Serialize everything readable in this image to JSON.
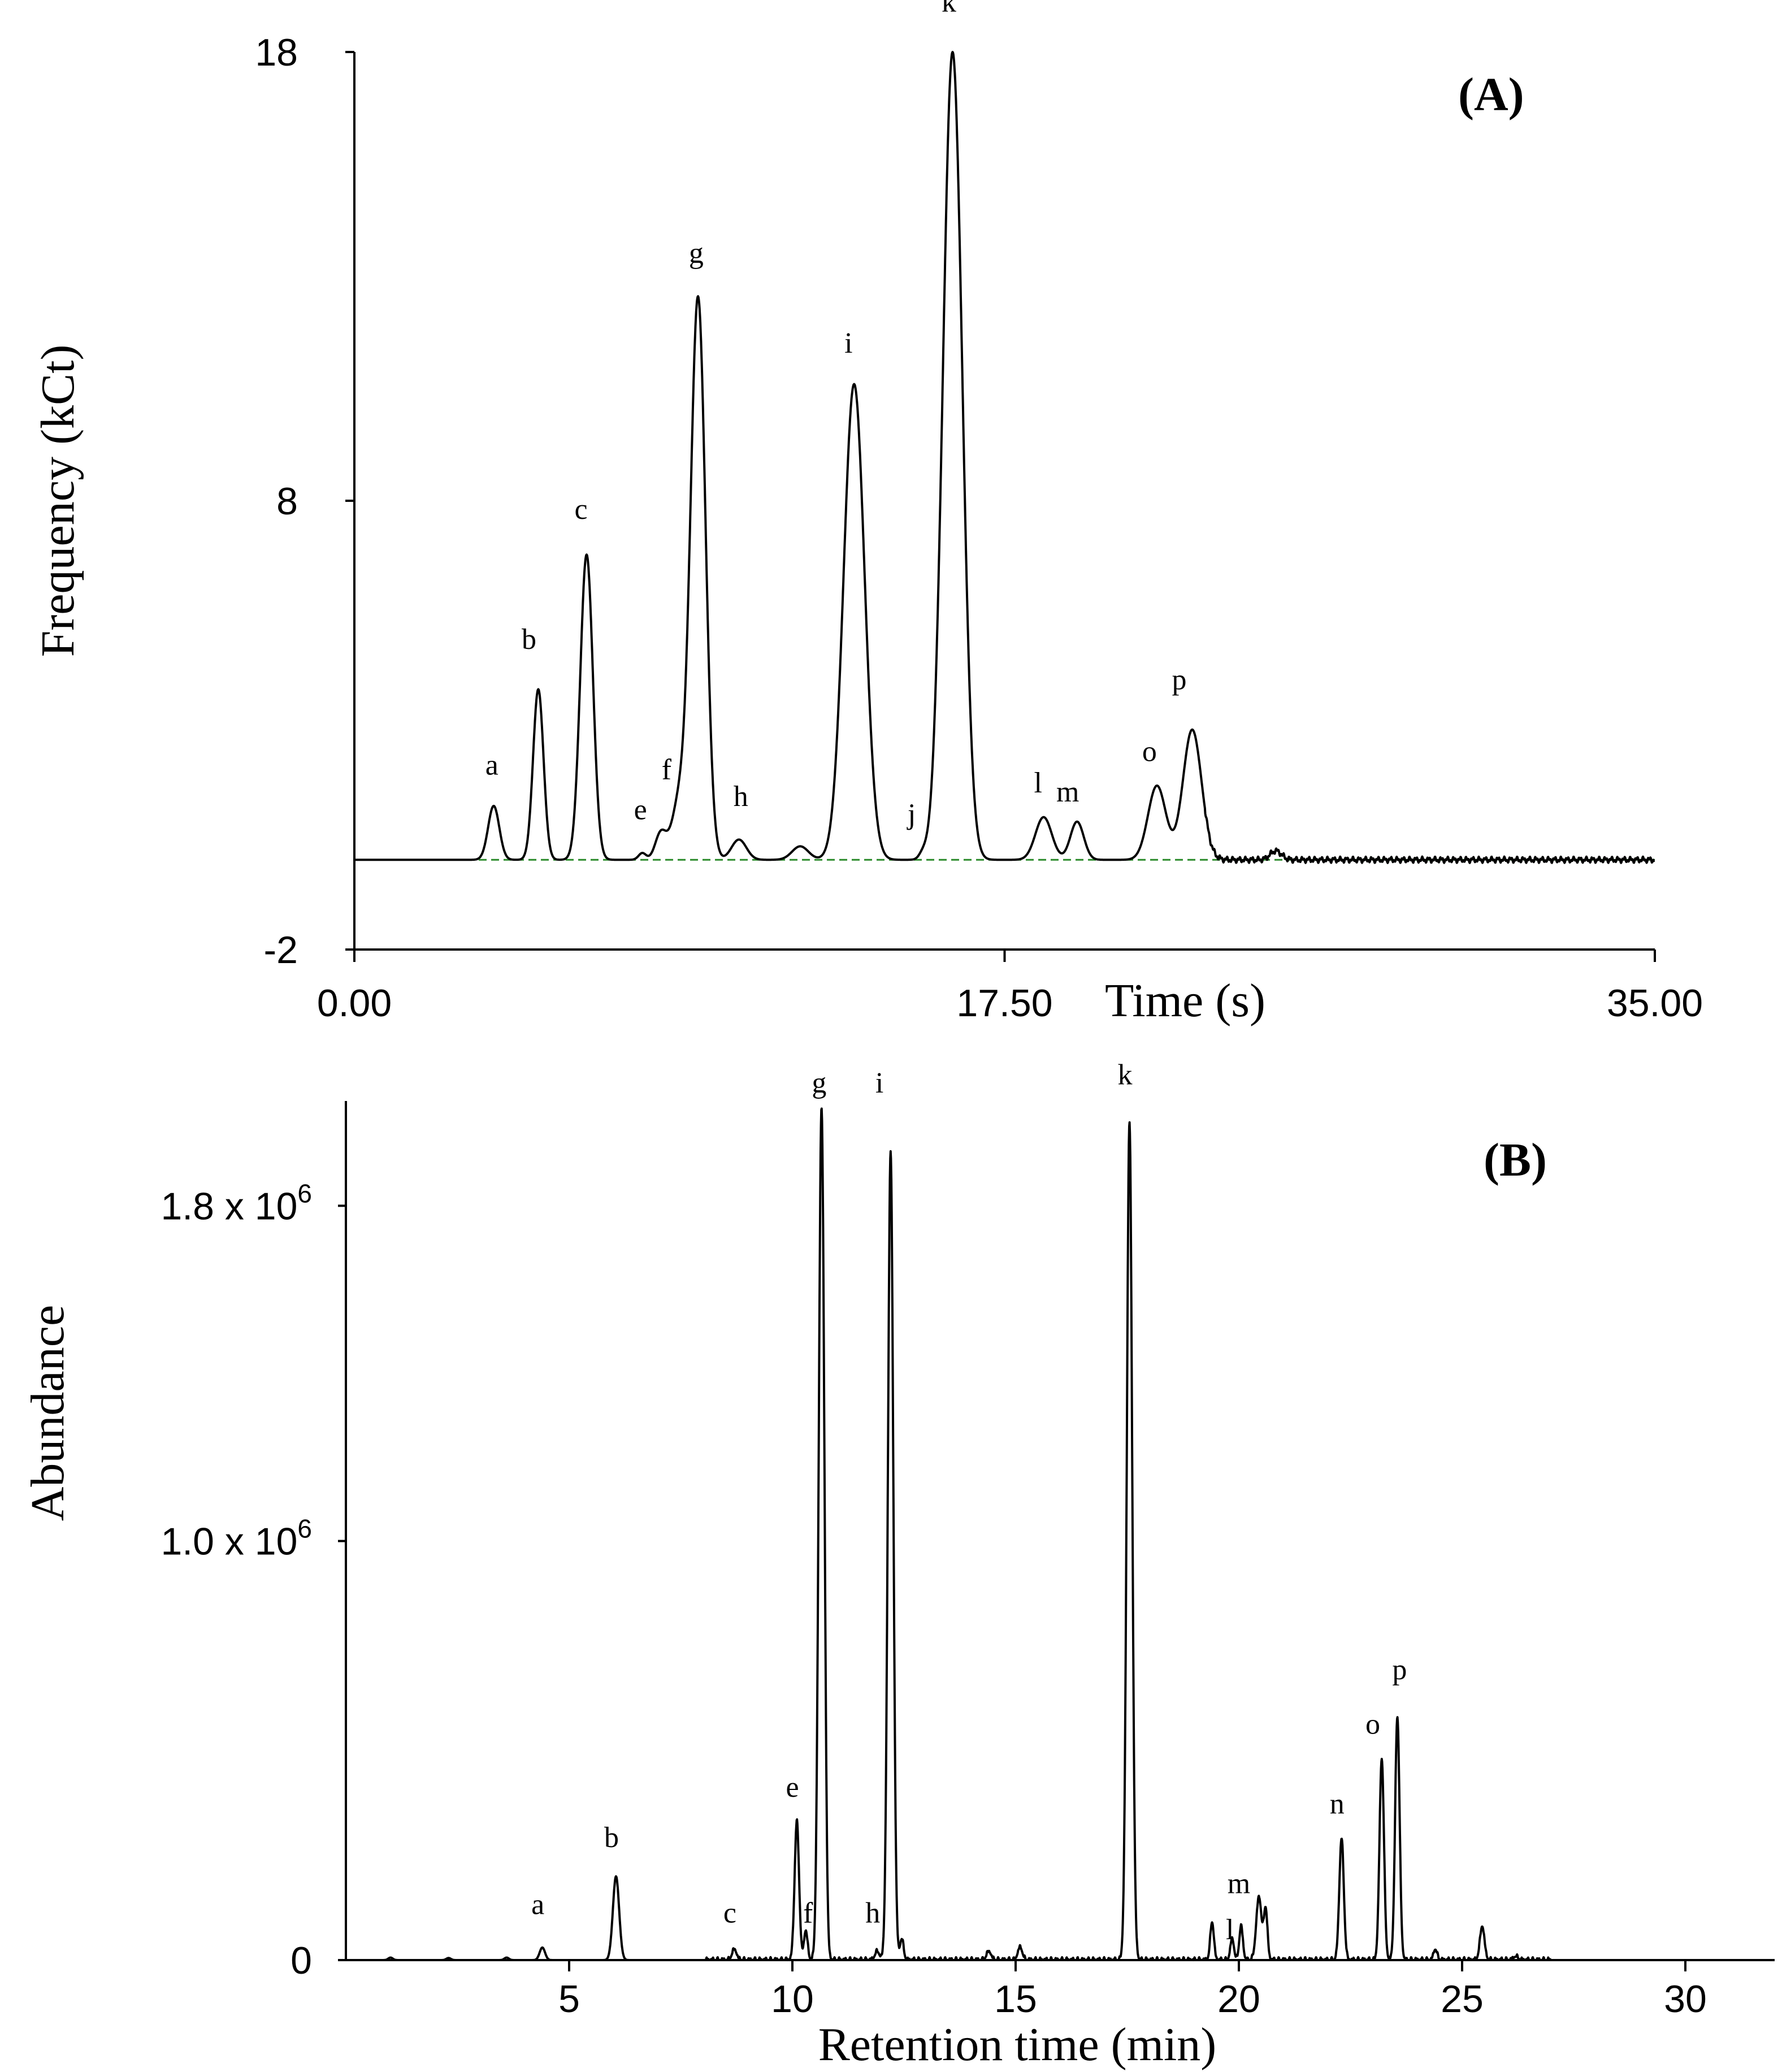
{
  "chart_data": [
    {
      "panel": "(A)",
      "type": "line",
      "xlabel": "Time (s)",
      "ylabel": "Frequency (kCt)",
      "xlim": [
        0,
        35
      ],
      "ylim": [
        -2,
        18
      ],
      "x_tick_labels": [
        "0.00",
        "17.50",
        "35.00"
      ],
      "y_tick_labels": [
        "18",
        "8",
        "-2"
      ],
      "x_ticks": [
        0,
        17.5,
        35
      ],
      "y_ticks": [
        18,
        8,
        -2
      ],
      "baseline": 0,
      "peaks": [
        {
          "label": "a",
          "x": 3.75,
          "height": 1.2,
          "width": 0.15
        },
        {
          "label": "b",
          "x": 4.95,
          "height": 3.8,
          "width": 0.14
        },
        {
          "label": "c",
          "x": 6.25,
          "height": 6.8,
          "width": 0.17
        },
        {
          "label": "e",
          "x": 7.75,
          "height": 0.15,
          "width": 0.1
        },
        {
          "label": "f",
          "x": 8.25,
          "height": 0.6,
          "width": 0.15
        },
        {
          "label": "",
          "x": 8.75,
          "height": 1.3,
          "width": 0.2
        },
        {
          "label": "g",
          "x": 9.25,
          "height": 12.5,
          "width": 0.2
        },
        {
          "label": "h",
          "x": 10.35,
          "height": 0.45,
          "width": 0.2
        },
        {
          "label": "",
          "x": 12.0,
          "height": 0.3,
          "width": 0.22
        },
        {
          "label": "i",
          "x": 13.45,
          "height": 10.6,
          "width": 0.28
        },
        {
          "label": "j",
          "x": 15.3,
          "height": 0.12,
          "width": 0.1
        },
        {
          "label": "k",
          "x": 16.1,
          "height": 18.0,
          "width": 0.26
        },
        {
          "label": "l",
          "x": 18.55,
          "height": 0.95,
          "width": 0.22
        },
        {
          "label": "m",
          "x": 19.45,
          "height": 0.85,
          "width": 0.18
        },
        {
          "label": "o",
          "x": 21.6,
          "height": 1.65,
          "width": 0.24
        },
        {
          "label": "p",
          "x": 22.55,
          "height": 2.9,
          "width": 0.25
        },
        {
          "label": "",
          "x": 24.8,
          "height": 0.2,
          "width": 0.15
        }
      ],
      "label_positions": [
        {
          "label": "a",
          "x": 3.7,
          "y": 1.9
        },
        {
          "label": "b",
          "x": 4.7,
          "y": 4.7
        },
        {
          "label": "c",
          "x": 6.1,
          "y": 7.6
        },
        {
          "label": "e",
          "x": 7.7,
          "y": 0.9
        },
        {
          "label": "f",
          "x": 8.4,
          "y": 1.8
        },
        {
          "label": "g",
          "x": 9.2,
          "y": 13.3
        },
        {
          "label": "h",
          "x": 10.4,
          "y": 1.2
        },
        {
          "label": "i",
          "x": 13.3,
          "y": 11.3
        },
        {
          "label": "j",
          "x": 15.0,
          "y": 0.8
        },
        {
          "label": "k",
          "x": 16.0,
          "y": 18.9
        },
        {
          "label": "l",
          "x": 18.4,
          "y": 1.5
        },
        {
          "label": "m",
          "x": 19.2,
          "y": 1.3
        },
        {
          "label": "o",
          "x": 21.4,
          "y": 2.2
        },
        {
          "label": "p",
          "x": 22.2,
          "y": 3.8
        }
      ]
    },
    {
      "panel": "(B)",
      "type": "line",
      "xlabel": "Retention time (min)",
      "ylabel": "Abundance",
      "xlim": [
        0,
        32
      ],
      "ylim": [
        0,
        2.05
      ],
      "x_tick_labels": [
        "5",
        "10",
        "15",
        "20",
        "25",
        "30"
      ],
      "x_ticks": [
        5,
        10,
        15,
        20,
        25,
        30
      ],
      "y_tick_labels": [
        {
          "value": 1.8,
          "base": "1.8 x 10",
          "exp": "6"
        },
        {
          "value": 1.0,
          "base": "1.0 x 10",
          "exp": "6"
        },
        {
          "value": 0,
          "base": "0",
          "exp": ""
        }
      ],
      "y_unit": "x 10^6",
      "peaks": [
        {
          "label": "",
          "x": 1.0,
          "height": 0.006,
          "width": 0.05
        },
        {
          "label": "",
          "x": 2.3,
          "height": 0.005,
          "width": 0.05
        },
        {
          "label": "",
          "x": 3.6,
          "height": 0.006,
          "width": 0.05
        },
        {
          "label": "a",
          "x": 4.4,
          "height": 0.03,
          "width": 0.06
        },
        {
          "label": "b",
          "x": 6.05,
          "height": 0.2,
          "width": 0.07
        },
        {
          "label": "c",
          "x": 8.7,
          "height": 0.025,
          "width": 0.05
        },
        {
          "label": "e",
          "x": 10.1,
          "height": 0.33,
          "width": 0.05
        },
        {
          "label": "f",
          "x": 10.3,
          "height": 0.07,
          "width": 0.04
        },
        {
          "label": "g",
          "x": 10.65,
          "height": 2.0,
          "width": 0.06
        },
        {
          "label": "",
          "x": 10.72,
          "height": 0.15,
          "width": 0.04
        },
        {
          "label": "h",
          "x": 11.9,
          "height": 0.02,
          "width": 0.05
        },
        {
          "label": "i",
          "x": 12.2,
          "height": 1.93,
          "width": 0.06
        },
        {
          "label": "",
          "x": 12.45,
          "height": 0.05,
          "width": 0.04
        },
        {
          "label": "",
          "x": 14.4,
          "height": 0.02,
          "width": 0.05
        },
        {
          "label": "",
          "x": 15.1,
          "height": 0.03,
          "width": 0.05
        },
        {
          "label": "k",
          "x": 17.55,
          "height": 2.0,
          "width": 0.06
        },
        {
          "label": "",
          "x": 19.4,
          "height": 0.09,
          "width": 0.04
        },
        {
          "label": "l",
          "x": 19.85,
          "height": 0.05,
          "width": 0.04
        },
        {
          "label": "",
          "x": 20.05,
          "height": 0.08,
          "width": 0.04
        },
        {
          "label": "m",
          "x": 20.45,
          "height": 0.15,
          "width": 0.06
        },
        {
          "label": "",
          "x": 20.6,
          "height": 0.12,
          "width": 0.04
        },
        {
          "label": "n",
          "x": 22.3,
          "height": 0.29,
          "width": 0.05
        },
        {
          "label": "o",
          "x": 23.2,
          "height": 0.48,
          "width": 0.05
        },
        {
          "label": "p",
          "x": 23.55,
          "height": 0.58,
          "width": 0.05
        },
        {
          "label": "",
          "x": 24.4,
          "height": 0.025,
          "width": 0.04
        },
        {
          "label": "",
          "x": 25.45,
          "height": 0.08,
          "width": 0.05
        },
        {
          "label": "",
          "x": 26.2,
          "height": 0.008,
          "width": 0.05
        }
      ],
      "label_positions": [
        {
          "label": "a",
          "x": 4.3,
          "y": 0.11
        },
        {
          "label": "b",
          "x": 5.95,
          "y": 0.27
        },
        {
          "label": "c",
          "x": 8.6,
          "y": 0.09
        },
        {
          "label": "e",
          "x": 10.0,
          "y": 0.39
        },
        {
          "label": "f",
          "x": 10.35,
          "y": 0.09
        },
        {
          "label": "g",
          "x": 10.6,
          "y": 2.07
        },
        {
          "label": "h",
          "x": 11.8,
          "y": 0.09
        },
        {
          "label": "i",
          "x": 11.95,
          "y": 2.07
        },
        {
          "label": "k",
          "x": 17.45,
          "y": 2.09
        },
        {
          "label": "l",
          "x": 19.8,
          "y": 0.05
        },
        {
          "label": "m",
          "x": 20.0,
          "y": 0.16
        },
        {
          "label": "n",
          "x": 22.2,
          "y": 0.35
        },
        {
          "label": "o",
          "x": 23.0,
          "y": 0.54
        },
        {
          "label": "p",
          "x": 23.6,
          "y": 0.67
        }
      ]
    }
  ]
}
